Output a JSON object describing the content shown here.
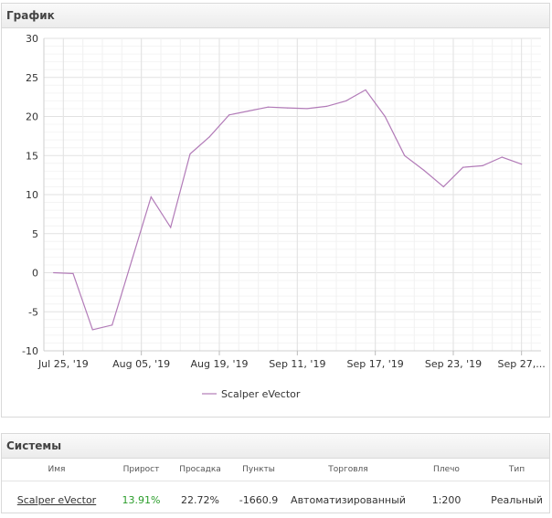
{
  "chart_panel": {
    "title": "График"
  },
  "systems_panel": {
    "title": "Системы",
    "columns": [
      "Имя",
      "Прирост",
      "Просадка",
      "Пункты",
      "Торговля",
      "Плечо",
      "Тип"
    ],
    "row": {
      "name": "Scalper eVector",
      "growth": "13.91%",
      "drawdown": "22.72%",
      "points": "-1660.9",
      "trading": "Автоматизированный",
      "leverage": "1:200",
      "type": "Реальный"
    }
  },
  "chart_data": {
    "type": "line",
    "title": "",
    "xlabel": "",
    "ylabel": "",
    "ylim": [
      -10,
      30
    ],
    "yticks": [
      30,
      25,
      20,
      15,
      10,
      5,
      0,
      -5,
      -10
    ],
    "xticks": [
      {
        "label": "Jul 25, '19",
        "x": 1
      },
      {
        "label": "Aug 05, '19",
        "x": 5
      },
      {
        "label": "Aug 19, '19",
        "x": 9
      },
      {
        "label": "Sep 11, '19",
        "x": 13
      },
      {
        "label": "Sep 17, '19",
        "x": 17
      },
      {
        "label": "Sep 23, '19",
        "x": 21
      },
      {
        "label": "Sep 27,...",
        "x": 24.5
      }
    ],
    "xlim": [
      0,
      25.5
    ],
    "grid": true,
    "legend": "bottom",
    "color": "#b27bb8",
    "series": [
      {
        "name": "Scalper eVector",
        "x": [
          0.5,
          1.5,
          2.5,
          3.5,
          4.5,
          5.5,
          6.5,
          7.5,
          8.5,
          9.5,
          10.5,
          11.5,
          12.5,
          13.5,
          14.5,
          15.5,
          16.5,
          17.5,
          18.5,
          19.5,
          20.5,
          21.5,
          22.5,
          23.5,
          24.5
        ],
        "values": [
          0,
          -0.1,
          -7.3,
          -6.7,
          1.5,
          9.7,
          5.8,
          15.2,
          17.4,
          20.2,
          20.7,
          21.2,
          21.1,
          21.0,
          21.3,
          22.0,
          23.4,
          20.0,
          15.0,
          13.1,
          11.0,
          13.5,
          13.7,
          14.8,
          13.9
        ]
      }
    ]
  }
}
